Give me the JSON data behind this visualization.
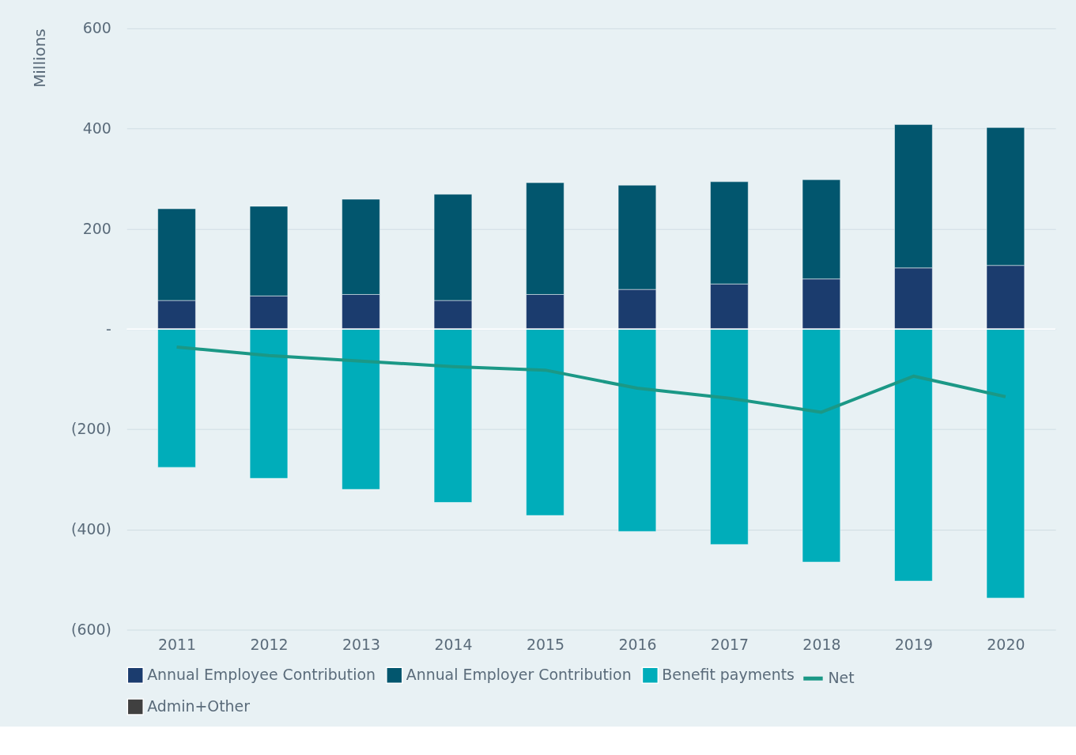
{
  "chart_data": {
    "type": "bar",
    "stacked": true,
    "ylabel": "Millions",
    "categories": [
      "2011",
      "2012",
      "2013",
      "2014",
      "2015",
      "2016",
      "2017",
      "2018",
      "2019",
      "2020"
    ],
    "series": [
      {
        "name": "Annual Employee Contribution",
        "color": "#1b3c6e",
        "values": [
          57,
          66,
          69,
          57,
          69,
          79,
          90,
          100,
          122,
          127
        ]
      },
      {
        "name": "Annual Employer Contribution",
        "color": "#02566e",
        "values": [
          183,
          179,
          190,
          212,
          223,
          208,
          204,
          198,
          286,
          275
        ]
      },
      {
        "name": "Benefit payments",
        "color": "#00adba",
        "values": [
          -276,
          -298,
          -320,
          -346,
          -372,
          -404,
          -430,
          -465,
          -503,
          -537
        ]
      },
      {
        "name": "Admin+Other",
        "color": "#404040",
        "values": [
          null,
          null,
          null,
          null,
          null,
          null,
          null,
          null,
          null,
          null
        ]
      },
      {
        "name": "Net",
        "type": "line",
        "color": "#1b9886",
        "values": [
          -36,
          -53,
          -64,
          -75,
          -82,
          -118,
          -138,
          -166,
          -94,
          -135
        ]
      }
    ],
    "ylim": [
      -600,
      600
    ],
    "yticks": [
      {
        "value": -600,
        "label": "(600)"
      },
      {
        "value": -400,
        "label": "(400)"
      },
      {
        "value": -200,
        "label": "(200)"
      },
      {
        "value": 0,
        "label": "-"
      },
      200,
      400,
      600
    ],
    "grid": "y",
    "legend": "bottom"
  }
}
